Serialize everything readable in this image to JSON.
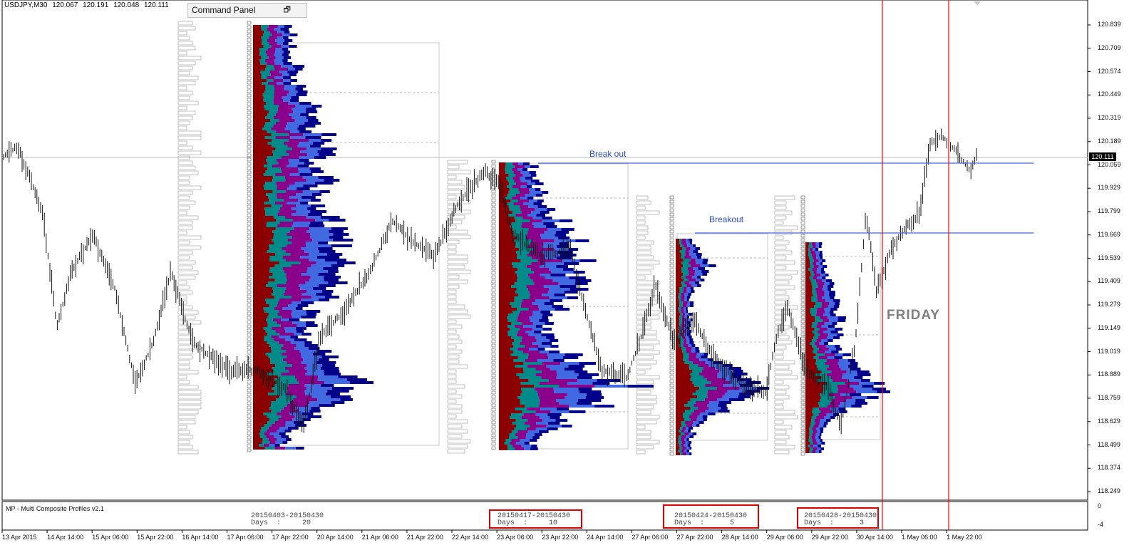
{
  "title": {
    "symbol": "USDJPY,M30",
    "open": "120.067",
    "high": "120.191",
    "low": "120.048",
    "close": "120.111"
  },
  "command_panel": {
    "label": "Command Panel",
    "restore_icon": "restore-icon"
  },
  "price_axis": {
    "labels": [
      "120.839",
      "120.709",
      "120.574",
      "120.449",
      "120.319",
      "120.189",
      "120.059",
      "119.929",
      "119.799",
      "119.669",
      "119.539",
      "119.409",
      "119.279",
      "119.149",
      "119.019",
      "118.889",
      "118.759",
      "118.629",
      "118.499",
      "118.374",
      "118.249"
    ],
    "current": "120.111"
  },
  "time_axis": {
    "labels": [
      "13 Apr 2015",
      "14 Apr 14:00",
      "15 Apr 06:00",
      "15 Apr 22:00",
      "16 Apr 14:00",
      "17 Apr 06:00",
      "17 Apr 22:00",
      "20 Apr 14:00",
      "21 Apr 06:00",
      "21 Apr 22:00",
      "22 Apr 14:00",
      "23 Apr 06:00",
      "23 Apr 22:00",
      "24 Apr 14:00",
      "27 Apr 06:00",
      "27 Apr 22:00",
      "28 Apr 14:00",
      "29 Apr 06:00",
      "29 Apr 22:00",
      "30 Apr 14:00",
      "1 May 06:00",
      "1 May 22:00"
    ]
  },
  "annotations": {
    "breakout_top": "Break out",
    "breakout_mid": "Breakout",
    "friday": "FRIDAY"
  },
  "indicator": {
    "name": "MP - Multi Composite Profiles v2.1",
    "axis_top": "0",
    "axis_bottom": "-4",
    "profiles": [
      {
        "range": "20150403-20150430",
        "days_label": "Days",
        "days": "20",
        "highlighted": false
      },
      {
        "range": "20150417-20150430",
        "days_label": "Days",
        "days": "10",
        "highlighted": true
      },
      {
        "range": "20150424-20150430",
        "days_label": "Days",
        "days": "5",
        "highlighted": true
      },
      {
        "range": "20150428-20150430",
        "days_label": "Days",
        "days": "3",
        "highlighted": true
      }
    ]
  },
  "colors": {
    "profile_palette": [
      "#00008b",
      "#4169e1",
      "#8b008b",
      "#008b8b",
      "#8b0000"
    ],
    "breakout_line": "#4466dd",
    "friday_line": "#ff0000",
    "highlight_box": "#e00000"
  }
}
